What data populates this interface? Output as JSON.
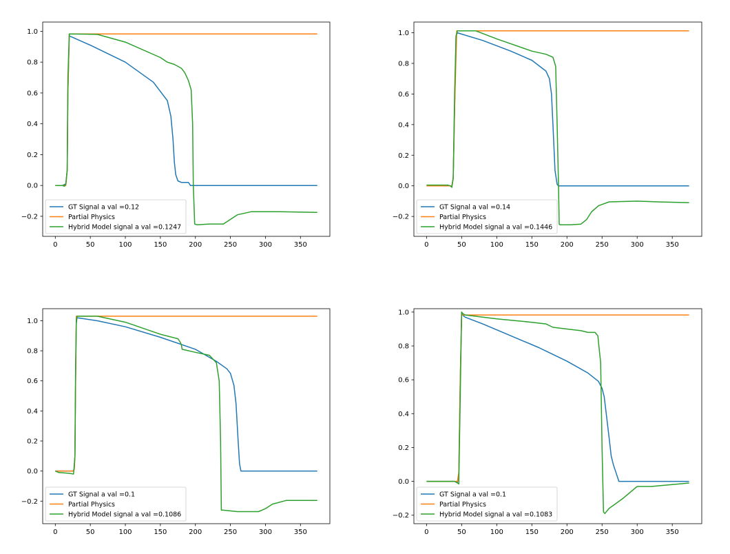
{
  "colors": {
    "gt": "#1f77b4",
    "partial": "#ff7f0e",
    "hybrid": "#2ca02c",
    "axis": "#000000",
    "legend_border": "#cccccc"
  },
  "chart_data": [
    {
      "type": "line",
      "xlim": [
        -18,
        392
      ],
      "ylim": [
        -0.33,
        1.06
      ],
      "xticks": [
        0,
        50,
        100,
        150,
        200,
        250,
        300,
        350
      ],
      "yticks": [
        -0.2,
        0.0,
        0.2,
        0.4,
        0.6,
        0.8,
        1.0
      ],
      "ytick_labels": [
        "−0.2",
        "0.0",
        "0.2",
        "0.4",
        "0.6",
        "0.8",
        "1.0"
      ],
      "legend": "lower-left",
      "series": [
        {
          "name": "GT Signal a val =0.12",
          "color_key": "gt",
          "x": [
            0,
            10,
            15,
            17,
            18,
            20,
            50,
            100,
            140,
            160,
            165,
            168,
            170,
            172,
            175,
            180,
            190,
            193,
            196,
            200,
            374
          ],
          "y": [
            0,
            0,
            0.01,
            0.1,
            0.6,
            0.97,
            0.91,
            0.8,
            0.67,
            0.55,
            0.45,
            0.3,
            0.15,
            0.07,
            0.03,
            0.02,
            0.02,
            0.0,
            0.0,
            0.0,
            0.0
          ]
        },
        {
          "name": "Partial Physics",
          "color_key": "partial",
          "x": [
            0,
            10,
            15,
            17,
            18,
            20,
            374
          ],
          "y": [
            0,
            0,
            0,
            0.1,
            0.6,
            0.983,
            0.983
          ]
        },
        {
          "name": "Hybrid Model signal a val =0.1247",
          "color_key": "hybrid",
          "x": [
            0,
            10,
            13,
            15,
            17,
            18,
            20,
            60,
            100,
            150,
            160,
            170,
            180,
            185,
            190,
            194,
            196,
            197,
            199,
            202,
            220,
            240,
            250,
            260,
            280,
            320,
            374
          ],
          "y": [
            0,
            0,
            -0.005,
            0.01,
            0.1,
            0.7,
            0.983,
            0.98,
            0.93,
            0.83,
            0.8,
            0.785,
            0.76,
            0.73,
            0.68,
            0.62,
            0.4,
            0.0,
            -0.25,
            -0.255,
            -0.25,
            -0.25,
            -0.22,
            -0.19,
            -0.17,
            -0.17,
            -0.175
          ]
        }
      ]
    },
    {
      "type": "line",
      "xlim": [
        -18,
        392
      ],
      "ylim": [
        -0.33,
        1.07
      ],
      "xticks": [
        0,
        50,
        100,
        150,
        200,
        250,
        300,
        350
      ],
      "yticks": [
        -0.2,
        0.0,
        0.2,
        0.4,
        0.6,
        0.8,
        1.0
      ],
      "ytick_labels": [
        "−0.2",
        "0.0",
        "0.2",
        "0.4",
        "0.6",
        "0.8",
        "1.0"
      ],
      "legend": "lower-left",
      "series": [
        {
          "name": "GT Signal a val =0.14",
          "color_key": "gt",
          "x": [
            0,
            30,
            36,
            38,
            40,
            42,
            44,
            80,
            120,
            150,
            170,
            175,
            178,
            180,
            183,
            186,
            188,
            190,
            374
          ],
          "y": [
            0,
            0,
            0,
            0.05,
            0.5,
            0.98,
            1.0,
            0.95,
            0.88,
            0.82,
            0.75,
            0.7,
            0.6,
            0.4,
            0.1,
            0.01,
            0.0,
            0.0,
            0.0
          ]
        },
        {
          "name": "Partial Physics",
          "color_key": "partial",
          "x": [
            0,
            36,
            38,
            40,
            43,
            374
          ],
          "y": [
            0,
            0,
            0.05,
            0.5,
            1.013,
            1.013
          ]
        },
        {
          "name": "Hybrid Model signal a val =0.1446",
          "color_key": "hybrid",
          "x": [
            0,
            30,
            34,
            36,
            38,
            40,
            42,
            44,
            70,
            100,
            150,
            170,
            180,
            184,
            186,
            188,
            189,
            190,
            205,
            220,
            228,
            235,
            245,
            260,
            300,
            330,
            374
          ],
          "y": [
            0.005,
            0.005,
            0.0,
            -0.01,
            0.05,
            0.6,
            0.98,
            1.013,
            1.013,
            0.96,
            0.88,
            0.86,
            0.84,
            0.78,
            0.4,
            0.0,
            -0.25,
            -0.255,
            -0.255,
            -0.25,
            -0.22,
            -0.17,
            -0.13,
            -0.105,
            -0.1,
            -0.105,
            -0.11
          ]
        }
      ]
    },
    {
      "type": "line",
      "xlim": [
        -18,
        392
      ],
      "ylim": [
        -0.35,
        1.08
      ],
      "xticks": [
        0,
        50,
        100,
        150,
        200,
        250,
        300,
        350
      ],
      "yticks": [
        -0.2,
        0.0,
        0.2,
        0.4,
        0.6,
        0.8,
        1.0
      ],
      "ytick_labels": [
        "−0.2",
        "0.0",
        "0.2",
        "0.4",
        "0.6",
        "0.8",
        "1.0"
      ],
      "legend": "lower-left",
      "series": [
        {
          "name": "GT Signal a val =0.1",
          "color_key": "gt",
          "x": [
            0,
            25,
            27,
            28,
            29,
            30,
            31,
            60,
            100,
            150,
            200,
            230,
            245,
            250,
            255,
            258,
            261,
            263,
            265,
            268,
            374
          ],
          "y": [
            0,
            0,
            0.01,
            0.1,
            0.6,
            0.98,
            1.02,
            1.0,
            0.96,
            0.89,
            0.81,
            0.73,
            0.68,
            0.65,
            0.57,
            0.45,
            0.2,
            0.05,
            0.0,
            0.0,
            0.0
          ]
        },
        {
          "name": "Partial Physics",
          "color_key": "partial",
          "x": [
            0,
            25,
            27,
            28,
            29,
            30,
            374
          ],
          "y": [
            0,
            0,
            0.01,
            0.1,
            0.6,
            1.03,
            1.03
          ]
        },
        {
          "name": "Hybrid Model signal a val =0.1086",
          "color_key": "hybrid",
          "x": [
            0,
            5,
            20,
            26,
            28,
            29,
            30,
            31,
            60,
            100,
            150,
            175,
            178,
            180,
            181,
            200,
            220,
            230,
            234,
            236,
            237,
            240,
            260,
            290,
            300,
            310,
            330,
            374
          ],
          "y": [
            0,
            -0.01,
            -0.015,
            -0.02,
            0.1,
            0.7,
            1.0,
            1.03,
            1.03,
            0.99,
            0.91,
            0.88,
            0.86,
            0.84,
            0.81,
            0.79,
            0.77,
            0.72,
            0.6,
            0.2,
            -0.26,
            -0.26,
            -0.27,
            -0.27,
            -0.25,
            -0.22,
            -0.195,
            -0.195
          ]
        }
      ]
    },
    {
      "type": "line",
      "xlim": [
        -18,
        392
      ],
      "ylim": [
        -0.25,
        1.02
      ],
      "xticks": [
        0,
        50,
        100,
        150,
        200,
        250,
        300,
        350
      ],
      "yticks": [
        -0.2,
        0.0,
        0.2,
        0.4,
        0.6,
        0.8,
        1.0
      ],
      "ytick_labels": [
        "−0.2",
        "0.0",
        "0.2",
        "0.4",
        "0.6",
        "0.8",
        "1.0"
      ],
      "legend": "lower-left",
      "series": [
        {
          "name": "GT Signal a val =0.1",
          "color_key": "gt",
          "x": [
            0,
            40,
            44,
            46,
            48,
            50,
            52,
            55,
            80,
            120,
            160,
            200,
            230,
            245,
            250,
            253,
            256,
            260,
            263,
            266,
            270,
            274,
            374
          ],
          "y": [
            0,
            0,
            -0.005,
            0.05,
            0.6,
            0.99,
            0.98,
            0.97,
            0.93,
            0.86,
            0.79,
            0.71,
            0.64,
            0.59,
            0.55,
            0.5,
            0.4,
            0.26,
            0.15,
            0.1,
            0.05,
            0.0,
            0.0
          ]
        },
        {
          "name": "Partial Physics",
          "color_key": "partial",
          "x": [
            0,
            44,
            46,
            48,
            50,
            374
          ],
          "y": [
            0,
            0,
            0.05,
            0.6,
            0.983,
            0.983
          ]
        },
        {
          "name": "Hybrid Model signal a val =0.1083",
          "color_key": "hybrid",
          "x": [
            0,
            40,
            44,
            46,
            48,
            50,
            52,
            55,
            100,
            150,
            170,
            180,
            200,
            220,
            230,
            240,
            244,
            248,
            250,
            252,
            254,
            256,
            260,
            280,
            300,
            320,
            374
          ],
          "y": [
            0,
            0,
            -0.01,
            -0.015,
            0.5,
            1.0,
            0.99,
            0.983,
            0.96,
            0.94,
            0.93,
            0.91,
            0.9,
            0.89,
            0.88,
            0.88,
            0.86,
            0.7,
            0.2,
            -0.18,
            -0.19,
            -0.18,
            -0.16,
            -0.1,
            -0.03,
            -0.03,
            -0.01
          ]
        }
      ]
    }
  ]
}
